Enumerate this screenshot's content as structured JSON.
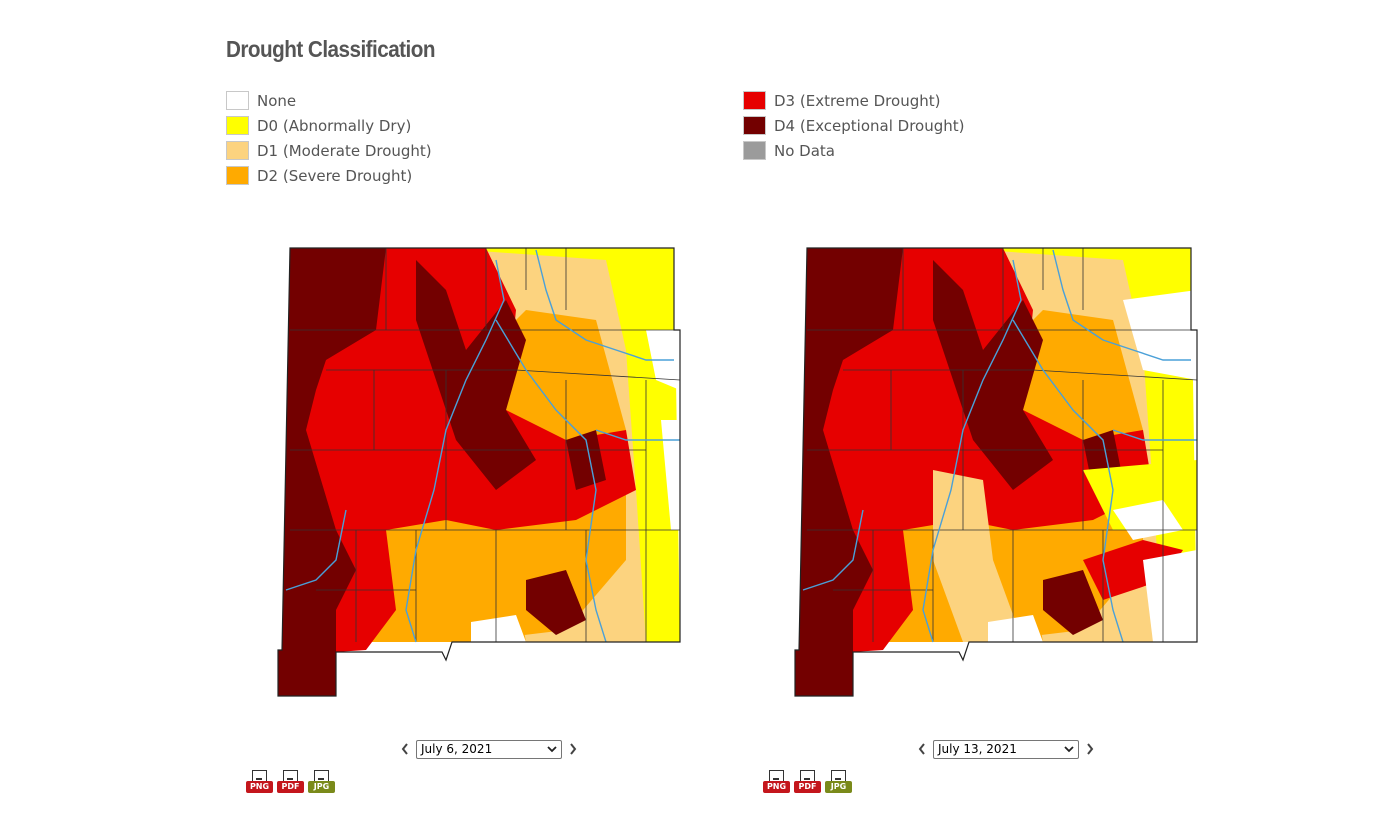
{
  "header": {
    "title": "Drought Classification"
  },
  "legend": {
    "left_items": [
      {
        "label": "None",
        "color": "#ffffff"
      },
      {
        "label": "D0 (Abnormally Dry)",
        "color": "#ffff00"
      },
      {
        "label": "D1 (Moderate Drought)",
        "color": "#fcd37f"
      },
      {
        "label": "D2 (Severe Drought)",
        "color": "#ffaa00"
      }
    ],
    "right_items": [
      {
        "label": "D3 (Extreme Drought)",
        "color": "#e60000"
      },
      {
        "label": "D4 (Exceptional Drought)",
        "color": "#730000"
      },
      {
        "label": "No Data",
        "color": "#9b9b9b"
      }
    ]
  },
  "maps": [
    {
      "selected_date": "July 6, 2021",
      "downloads": [
        {
          "label": "PNG",
          "icon": "png-file-icon",
          "color": "#c4161c"
        },
        {
          "label": "PDF",
          "icon": "pdf-file-icon",
          "color": "#c4161c"
        },
        {
          "label": "JPG",
          "icon": "jpg-file-icon",
          "color": "#7a8a1a"
        }
      ]
    },
    {
      "selected_date": "July 13, 2021",
      "downloads": [
        {
          "label": "PNG",
          "icon": "png-file-icon",
          "color": "#c4161c"
        },
        {
          "label": "PDF",
          "icon": "pdf-file-icon",
          "color": "#c4161c"
        },
        {
          "label": "JPG",
          "icon": "jpg-file-icon",
          "color": "#7a8a1a"
        }
      ]
    }
  ]
}
